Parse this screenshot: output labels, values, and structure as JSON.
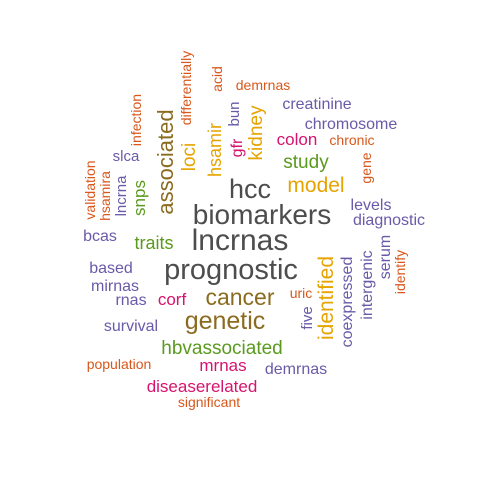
{
  "colors": {
    "gray": "#4d4d4d",
    "brown": "#8b6b1f",
    "gold": "#e6a400",
    "green": "#5a9a1e",
    "orange": "#d9571b",
    "purple": "#6a5aa8",
    "magenta": "#d6136f",
    "darkgold": "#b07f10"
  },
  "words": [
    {
      "text": "lncrnas",
      "color": "gray"
    },
    {
      "text": "biomarkers",
      "color": "gray"
    },
    {
      "text": "prognostic",
      "color": "gray"
    },
    {
      "text": "hcc",
      "color": "gray"
    },
    {
      "text": "cancer",
      "color": "brown"
    },
    {
      "text": "genetic",
      "color": "brown"
    },
    {
      "text": "associated",
      "color": "brown"
    },
    {
      "text": "model",
      "color": "gold"
    },
    {
      "text": "identified",
      "color": "gold"
    },
    {
      "text": "hbvassociated",
      "color": "green"
    },
    {
      "text": "kidney",
      "color": "gold"
    },
    {
      "text": "hsamir",
      "color": "gold"
    },
    {
      "text": "loci",
      "color": "gold"
    },
    {
      "text": "study",
      "color": "green"
    },
    {
      "text": "traits",
      "color": "green"
    },
    {
      "text": "snps",
      "color": "green"
    },
    {
      "text": "colon",
      "color": "magenta"
    },
    {
      "text": "corf",
      "color": "magenta"
    },
    {
      "text": "mrnas",
      "color": "magenta"
    },
    {
      "text": "diseaserelated",
      "color": "magenta"
    },
    {
      "text": "gfr",
      "color": "magenta"
    },
    {
      "text": "creatinine",
      "color": "purple"
    },
    {
      "text": "chromosome",
      "color": "purple"
    },
    {
      "text": "levels",
      "color": "purple"
    },
    {
      "text": "diagnostic",
      "color": "purple"
    },
    {
      "text": "based",
      "color": "purple"
    },
    {
      "text": "mirnas",
      "color": "purple"
    },
    {
      "text": "rnas",
      "color": "purple"
    },
    {
      "text": "bcas",
      "color": "purple"
    },
    {
      "text": "survival",
      "color": "purple"
    },
    {
      "text": "demrnas",
      "color": "purple"
    },
    {
      "text": "coexpressed",
      "color": "purple"
    },
    {
      "text": "intergenic",
      "color": "purple"
    },
    {
      "text": "serum",
      "color": "purple"
    },
    {
      "text": "five",
      "color": "purple"
    },
    {
      "text": "lncrna",
      "color": "purple"
    },
    {
      "text": "slca",
      "color": "purple"
    },
    {
      "text": "bun",
      "color": "purple"
    },
    {
      "text": "demrnas",
      "color": "orange"
    },
    {
      "text": "chronic",
      "color": "orange"
    },
    {
      "text": "gene",
      "color": "orange"
    },
    {
      "text": "identify",
      "color": "orange"
    },
    {
      "text": "uric",
      "color": "orange"
    },
    {
      "text": "population",
      "color": "orange"
    },
    {
      "text": "significant",
      "color": "orange"
    },
    {
      "text": "validation",
      "color": "orange"
    },
    {
      "text": "hsamira",
      "color": "orange"
    },
    {
      "text": "infection",
      "color": "orange"
    },
    {
      "text": "differentially",
      "color": "orange"
    },
    {
      "text": "acid",
      "color": "orange"
    }
  ]
}
